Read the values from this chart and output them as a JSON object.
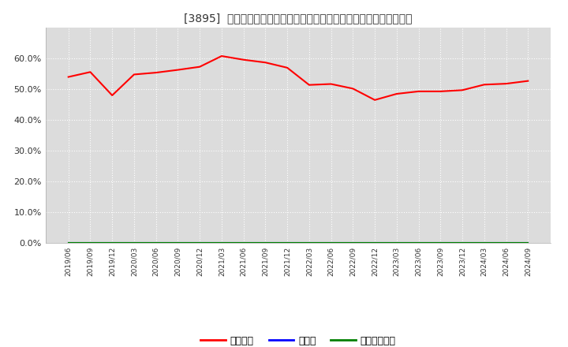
{
  "title": "[3895]  自己資本、のれん、繰延税金資産の総資産に対する比率の推移",
  "x_labels": [
    "2019/06",
    "2019/09",
    "2019/12",
    "2020/03",
    "2020/06",
    "2020/09",
    "2020/12",
    "2021/03",
    "2021/06",
    "2021/09",
    "2021/12",
    "2022/03",
    "2022/06",
    "2022/09",
    "2022/12",
    "2023/03",
    "2023/06",
    "2023/09",
    "2023/12",
    "2024/03",
    "2024/06",
    "2024/09"
  ],
  "equity_ratio": [
    0.54,
    0.556,
    0.48,
    0.548,
    0.554,
    0.563,
    0.573,
    0.608,
    0.596,
    0.587,
    0.57,
    0.514,
    0.517,
    0.502,
    0.465,
    0.485,
    0.493,
    0.493,
    0.497,
    0.515,
    0.518,
    0.527
  ],
  "noren_ratio": [
    0.0,
    0.0,
    0.0,
    0.0,
    0.0,
    0.0,
    0.0,
    0.0,
    0.0,
    0.0,
    0.0,
    0.0,
    0.0,
    0.0,
    0.0,
    0.0,
    0.0,
    0.0,
    0.0,
    0.0,
    0.0,
    0.0
  ],
  "dta_ratio": [
    0.0,
    0.0,
    0.0,
    0.0,
    0.0,
    0.0,
    0.0,
    0.0,
    0.0,
    0.0,
    0.0,
    0.0,
    0.0,
    0.0,
    0.0,
    0.0,
    0.0,
    0.0,
    0.0,
    0.0,
    0.0,
    0.0
  ],
  "equity_color": "#FF0000",
  "noren_color": "#0000FF",
  "dta_color": "#008000",
  "bg_color": "#FFFFFF",
  "plot_bg_color": "#DCDCDC",
  "grid_color": "#FFFFFF",
  "ylim": [
    0.0,
    0.7
  ],
  "yticks": [
    0.0,
    0.1,
    0.2,
    0.3,
    0.4,
    0.5,
    0.6
  ],
  "legend_labels": [
    "自己資本",
    "のれん",
    "繰延税金資産"
  ]
}
